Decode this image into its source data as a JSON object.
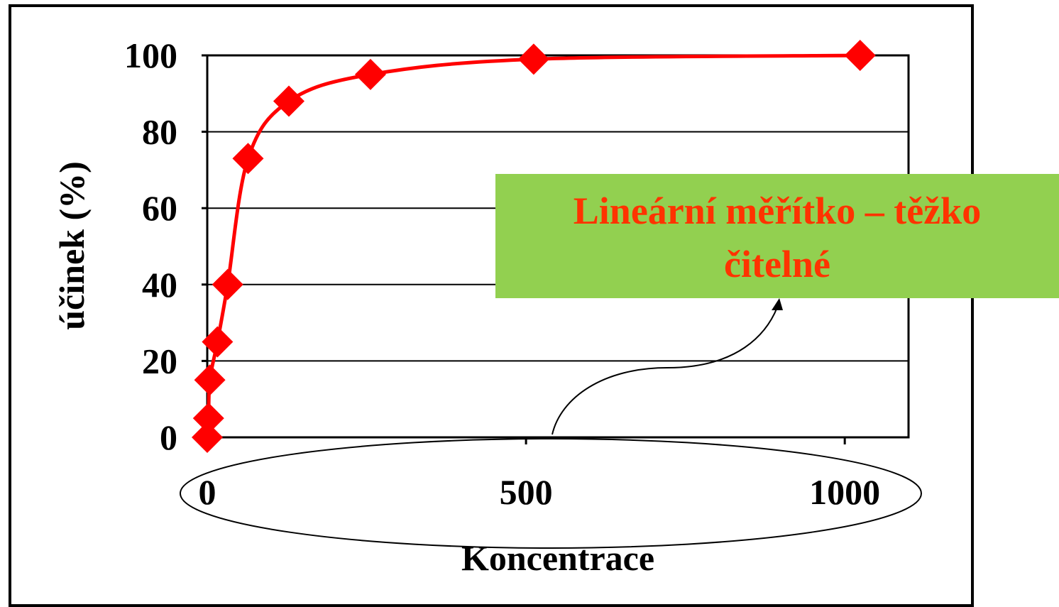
{
  "chart_data": {
    "type": "line",
    "xlabel": "Koncentrace",
    "ylabel": "účinek (%)",
    "xlim": [
      0,
      1100
    ],
    "ylim": [
      0,
      100
    ],
    "x_ticks": [
      0,
      500,
      1000
    ],
    "y_ticks": [
      0,
      20,
      40,
      60,
      80,
      100
    ],
    "grid": "horizontal",
    "series": [
      {
        "color": "#ff0000",
        "marker": "diamond",
        "x": [
          0,
          2,
          4,
          16,
          32,
          64,
          128,
          256,
          512,
          1024
        ],
        "y": [
          0,
          5,
          15,
          25,
          40,
          73,
          88,
          95,
          99,
          100
        ]
      }
    ],
    "annotation": {
      "lines": [
        "Lineární měřítko – těžko",
        "čitelné"
      ],
      "background": "#92d050",
      "text_color": "#ff3300",
      "highlights": "x-axis"
    }
  }
}
